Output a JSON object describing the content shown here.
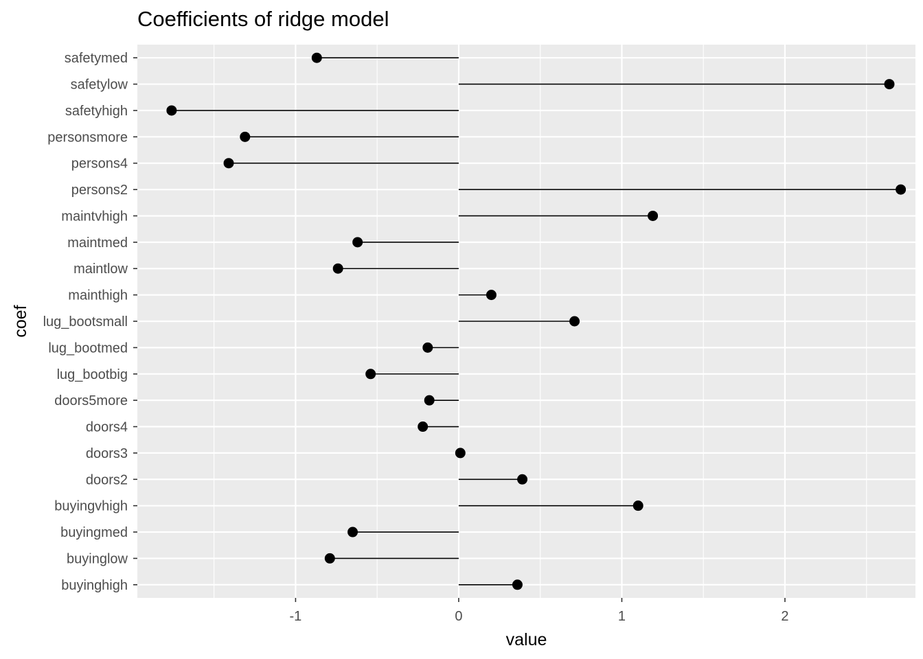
{
  "chart_data": {
    "type": "lollipop",
    "title": "Coefficients of ridge model",
    "xlabel": "value",
    "ylabel": "coef",
    "xlim": [
      -1.97,
      2.8
    ],
    "x_ticks": [
      -1,
      0,
      1,
      2
    ],
    "grid": true,
    "background": "#ebebeb",
    "gridline_color": "#ffffff",
    "point_color": "#000000",
    "segment_color": "#000000",
    "categories": [
      "buyinghigh",
      "buyinglow",
      "buyingmed",
      "buyingvhigh",
      "doors2",
      "doors3",
      "doors4",
      "doors5more",
      "lug_bootbig",
      "lug_bootmed",
      "lug_bootsmall",
      "mainthigh",
      "maintlow",
      "maintmed",
      "maintvhigh",
      "persons2",
      "persons4",
      "personsmore",
      "safetyhigh",
      "safetylow",
      "safetymed"
    ],
    "values": [
      0.36,
      -0.79,
      -0.65,
      1.1,
      0.39,
      0.01,
      -0.22,
      -0.18,
      -0.54,
      -0.19,
      0.71,
      0.2,
      -0.74,
      -0.62,
      1.19,
      2.71,
      -1.41,
      -1.31,
      -1.76,
      2.64,
      -0.87
    ]
  }
}
